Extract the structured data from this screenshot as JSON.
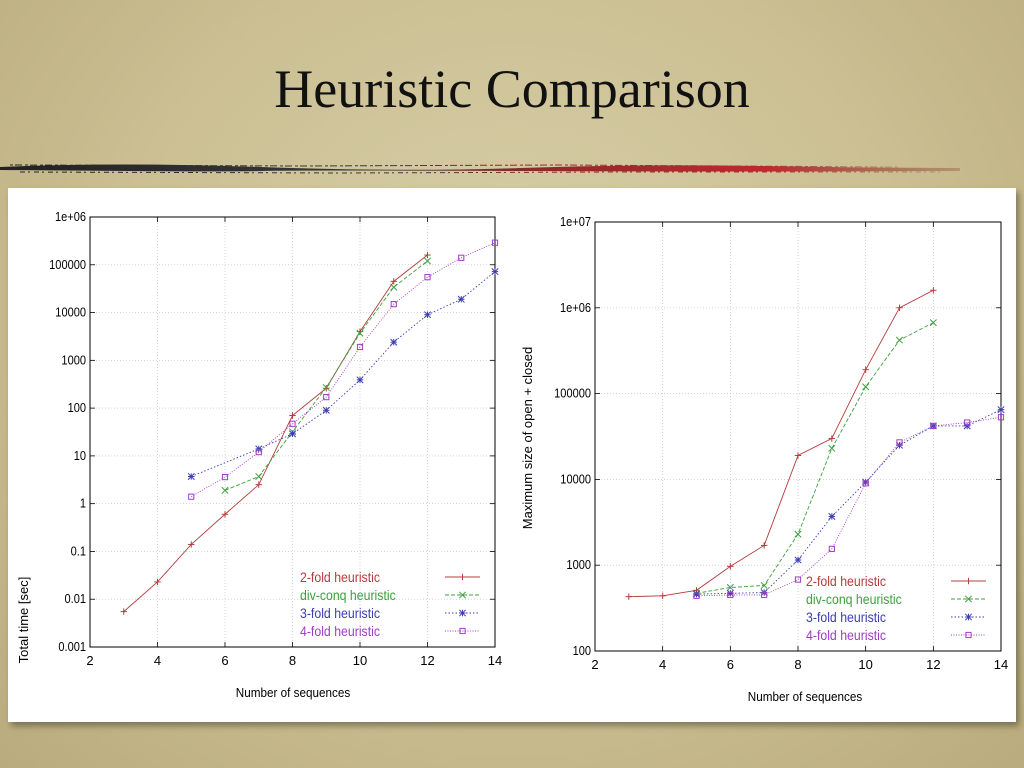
{
  "slide": {
    "title": "Heuristic Comparison"
  },
  "colors": {
    "2fold": "#b43c3c",
    "divconq": "#3ca03c",
    "3fold": "#3c3cb4",
    "4fold": "#a03cc8"
  },
  "chart_data": [
    {
      "type": "line",
      "yscale": "log",
      "xlabel": "Number of sequences",
      "ylabel": "Total time [sec]",
      "xlim": [
        2,
        14
      ],
      "ylim": [
        0.001,
        1000000
      ],
      "x_ticks": [
        "2",
        "4",
        "6",
        "8",
        "10",
        "12",
        "14"
      ],
      "y_ticks": [
        "0.001",
        "0.01",
        "0.1",
        "1",
        "10",
        "100",
        "1000",
        "10000",
        "100000",
        "1e+06"
      ],
      "grid": true,
      "legend_position": "bottom-right",
      "series": [
        {
          "name": "2-fold heuristic",
          "key": "2fold",
          "marker": "plus",
          "points": [
            [
              3,
              0.0055
            ],
            [
              4,
              0.023
            ],
            [
              5,
              0.14
            ],
            [
              6,
              0.6
            ],
            [
              7,
              2.5
            ],
            [
              8,
              70
            ],
            [
              9,
              260
            ],
            [
              10,
              4000
            ],
            [
              11,
              45000
            ],
            [
              12,
              160000
            ]
          ]
        },
        {
          "name": "div-conq heuristic",
          "key": "divconq",
          "marker": "cross",
          "points": [
            [
              6,
              1.9
            ],
            [
              7,
              3.7
            ],
            [
              8,
              32
            ],
            [
              9,
              270
            ],
            [
              10,
              3700
            ],
            [
              11,
              34000
            ],
            [
              12,
              120000
            ]
          ]
        },
        {
          "name": "3-fold heuristic",
          "key": "3fold",
          "marker": "star",
          "points": [
            [
              5,
              3.7
            ],
            [
              7,
              14
            ],
            [
              8,
              29
            ],
            [
              9,
              90
            ],
            [
              10,
              390
            ],
            [
              11,
              2400
            ],
            [
              12,
              9000
            ],
            [
              13,
              19000
            ],
            [
              14,
              72000
            ]
          ]
        },
        {
          "name": "4-fold heuristic",
          "key": "4fold",
          "marker": "square",
          "points": [
            [
              5,
              1.4
            ],
            [
              6,
              3.6
            ],
            [
              7,
              12
            ],
            [
              8,
              47
            ],
            [
              9,
              170
            ],
            [
              10,
              1900
            ],
            [
              11,
              15000
            ],
            [
              12,
              55000
            ],
            [
              13,
              140000
            ],
            [
              14,
              290000
            ]
          ]
        }
      ]
    },
    {
      "type": "line",
      "yscale": "log",
      "xlabel": "Number of sequences",
      "ylabel": "Maximum size of open + closed",
      "xlim": [
        2,
        14
      ],
      "ylim": [
        100,
        10000000
      ],
      "x_ticks": [
        "2",
        "4",
        "6",
        "8",
        "10",
        "12",
        "14"
      ],
      "y_ticks": [
        "100",
        "1000",
        "10000",
        "100000",
        "1e+06",
        "1e+07"
      ],
      "grid": true,
      "legend_position": "bottom-right",
      "series": [
        {
          "name": "2-fold heuristic",
          "key": "2fold",
          "marker": "plus",
          "points": [
            [
              3,
              430
            ],
            [
              4,
              440
            ],
            [
              5,
              510
            ],
            [
              6,
              970
            ],
            [
              7,
              1700
            ],
            [
              8,
              19000
            ],
            [
              9,
              30000
            ],
            [
              10,
              190000
            ],
            [
              11,
              1000000
            ],
            [
              12,
              1600000
            ]
          ]
        },
        {
          "name": "div-conq heuristic",
          "key": "divconq",
          "marker": "cross",
          "points": [
            [
              5,
              470
            ],
            [
              6,
              550
            ],
            [
              7,
              580
            ],
            [
              8,
              2300
            ],
            [
              9,
              23000
            ],
            [
              10,
              120000
            ],
            [
              11,
              420000
            ],
            [
              12,
              670000
            ]
          ]
        },
        {
          "name": "3-fold heuristic",
          "key": "3fold",
          "marker": "star",
          "points": [
            [
              5,
              460
            ],
            [
              6,
              470
            ],
            [
              7,
              480
            ],
            [
              8,
              1150
            ],
            [
              9,
              3700
            ],
            [
              10,
              9300
            ],
            [
              11,
              25000
            ],
            [
              12,
              42000
            ],
            [
              13,
              42000
            ],
            [
              14,
              65000
            ]
          ]
        },
        {
          "name": "4-fold heuristic",
          "key": "4fold",
          "marker": "square",
          "points": [
            [
              5,
              440
            ],
            [
              6,
              450
            ],
            [
              7,
              450
            ],
            [
              8,
              680
            ],
            [
              9,
              1550
            ],
            [
              10,
              9000
            ],
            [
              11,
              27000
            ],
            [
              12,
              42000
            ],
            [
              13,
              46000
            ],
            [
              14,
              53000
            ]
          ]
        }
      ]
    }
  ]
}
